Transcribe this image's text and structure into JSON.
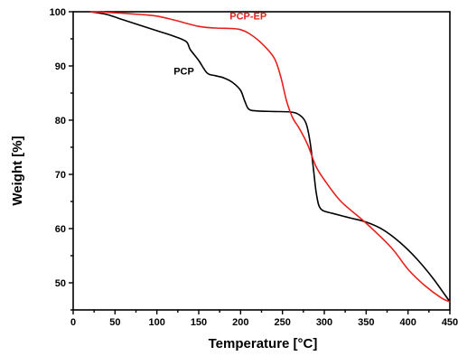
{
  "chart_data": {
    "type": "line",
    "xlabel": "Temperature [°C]",
    "ylabel": "Weight [%]",
    "xlim": [
      0,
      450
    ],
    "ylim": [
      45,
      100
    ],
    "x_ticks": [
      0,
      50,
      100,
      150,
      200,
      250,
      300,
      350,
      400,
      450
    ],
    "y_ticks": [
      50,
      60,
      70,
      80,
      90,
      100
    ],
    "grid": false,
    "series": [
      {
        "name": "PCP",
        "color": "#000000",
        "x": [
          20,
          40,
          60,
          80,
          100,
          120,
          135,
          140,
          150,
          160,
          170,
          180,
          190,
          200,
          205,
          210,
          220,
          240,
          260,
          270,
          278,
          283,
          287,
          290,
          293,
          296,
          300,
          310,
          330,
          350,
          370,
          390,
          410,
          430,
          450
        ],
        "y": [
          100,
          99.5,
          98.5,
          97.5,
          96.5,
          95.5,
          94.5,
          93,
          91,
          88.7,
          88.2,
          87.8,
          87,
          85.5,
          83.5,
          82,
          81.7,
          81.6,
          81.5,
          81,
          79.5,
          76,
          71,
          67,
          64.5,
          63.6,
          63.2,
          62.8,
          62,
          61.2,
          59.8,
          57.5,
          54.5,
          50.8,
          46.5
        ]
      },
      {
        "name": "PCP-EP",
        "color": "#e8201c",
        "x": [
          20,
          50,
          80,
          100,
          120,
          150,
          170,
          190,
          200,
          210,
          225,
          240,
          248,
          255,
          262,
          270,
          280,
          290,
          300,
          320,
          350,
          380,
          400,
          420,
          440,
          450
        ],
        "y": [
          100,
          99.8,
          99.5,
          99.2,
          98.5,
          97.3,
          97,
          96.9,
          96.7,
          96,
          94.2,
          91.5,
          88,
          83.5,
          80.5,
          78.5,
          75.5,
          71.5,
          69,
          65,
          61,
          56.5,
          52.5,
          49.5,
          47.2,
          46.5
        ]
      }
    ]
  }
}
